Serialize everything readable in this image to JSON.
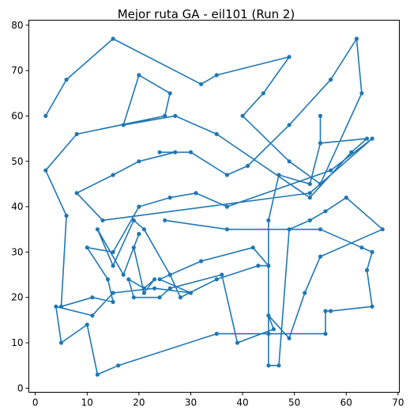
{
  "chart_data": {
    "type": "line",
    "title": "Mejor ruta GA - eil101 (Run 2)",
    "xlabel": "",
    "ylabel": "",
    "xlim": [
      -1.25,
      70.25
    ],
    "ylim": [
      -0.9,
      81.1
    ],
    "xticks": [
      0,
      10,
      20,
      30,
      40,
      50,
      60,
      70
    ],
    "yticks": [
      0,
      10,
      20,
      30,
      40,
      50,
      60,
      70,
      80
    ],
    "grid": false,
    "color": "#1f77b4",
    "series": [
      {
        "marker": "circle",
        "x": [
          2,
          6,
          15,
          32,
          35,
          49,
          44,
          40,
          49,
          55,
          63,
          62,
          57,
          49,
          41,
          37,
          30,
          24,
          27,
          20,
          15,
          8,
          13,
          53,
          65,
          57,
          37,
          31,
          26,
          20,
          15,
          10,
          14,
          15,
          11,
          5,
          6,
          2,
          8,
          25,
          26,
          20,
          17,
          27,
          35,
          53,
          61,
          64,
          55,
          55,
          55,
          53,
          47,
          45,
          45,
          45,
          47,
          49,
          53,
          56,
          60,
          67,
          55,
          52,
          49,
          45,
          46,
          39,
          36,
          26,
          24,
          19,
          18,
          21,
          23,
          21,
          19,
          20,
          17,
          12,
          15,
          19,
          21,
          26,
          28,
          35,
          43,
          45,
          42,
          32,
          24,
          30,
          23,
          15,
          11,
          4,
          5,
          10,
          12,
          16,
          35,
          56,
          56,
          57,
          65,
          64,
          65,
          63,
          55,
          37,
          25
        ],
        "y": [
          60,
          68,
          77,
          67,
          69,
          73,
          65,
          60,
          50,
          45,
          65,
          77,
          68,
          58,
          49,
          47,
          52,
          52,
          52,
          50,
          47,
          43,
          37,
          43,
          55,
          48,
          40,
          43,
          42,
          40,
          30,
          31,
          24,
          19,
          20,
          18,
          38,
          48,
          56,
          60,
          65,
          69,
          58,
          60,
          56,
          42,
          52,
          55,
          54,
          60,
          54,
          45,
          47,
          37,
          12,
          5,
          5,
          35,
          37,
          39,
          42,
          35,
          29,
          21,
          11,
          16,
          13,
          10,
          25,
          22,
          20,
          20,
          24,
          22,
          24,
          21,
          31,
          34,
          25,
          35,
          27,
          37,
          35,
          25,
          20,
          24,
          27,
          27,
          31,
          28,
          24,
          21,
          22,
          21,
          16,
          18,
          10,
          14,
          3,
          5,
          12,
          12,
          17,
          17,
          18,
          26,
          30,
          31,
          35,
          35,
          37
        ]
      }
    ]
  }
}
